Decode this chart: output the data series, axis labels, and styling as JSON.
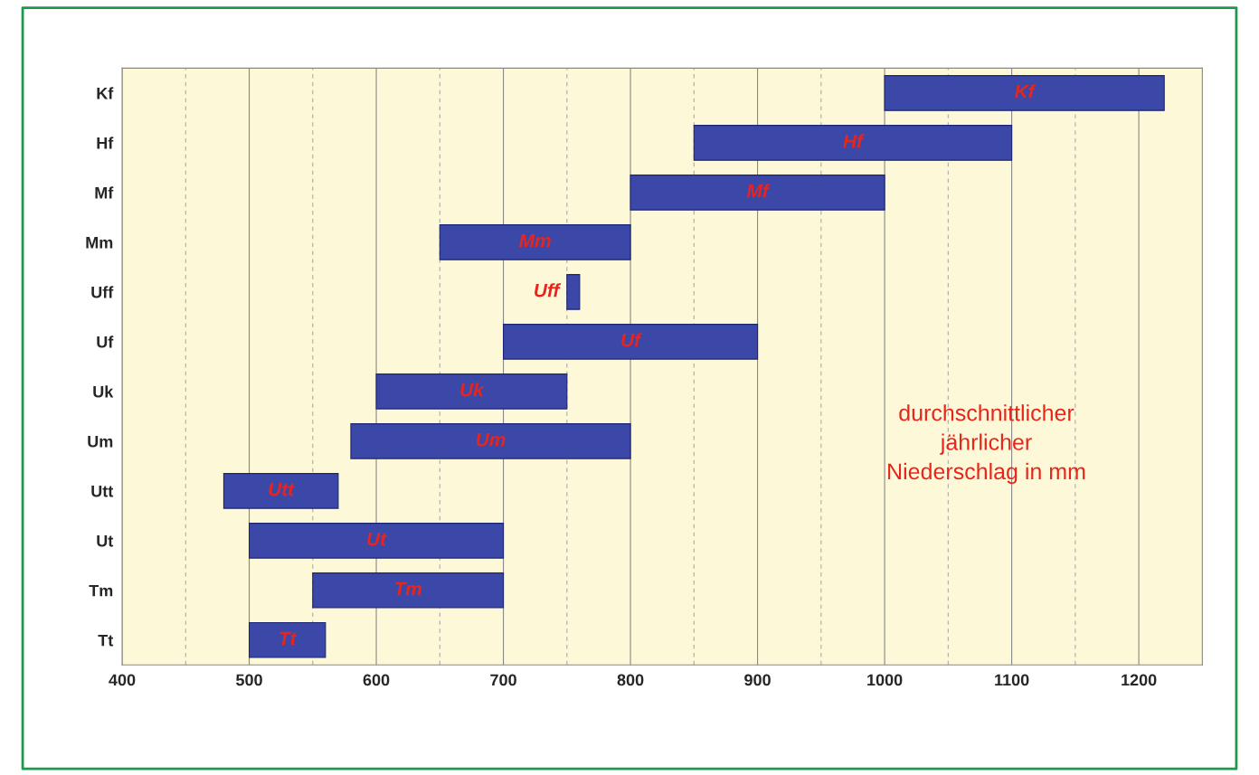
{
  "chart_data": {
    "type": "bar",
    "orientation": "horizontal",
    "categories": [
      "Kf",
      "Hf",
      "Mf",
      "Mm",
      "Uff",
      "Uf",
      "Uk",
      "Um",
      "Utt",
      "Ut",
      "Tm",
      "Tt"
    ],
    "base": [
      1000,
      850,
      800,
      650,
      750,
      700,
      600,
      580,
      480,
      500,
      550,
      500
    ],
    "values": [
      220,
      250,
      200,
      150,
      10,
      200,
      150,
      220,
      90,
      200,
      150,
      60
    ],
    "color": "#3b48a8",
    "value_labels": [
      "Kf",
      "Hf",
      "Mf",
      "Mm",
      "Uff",
      "Uf",
      "Uk",
      "Um",
      "Utt",
      "Ut",
      "Tm",
      "Tt"
    ],
    "xlim": [
      400,
      1250
    ],
    "xticks": [
      400,
      {
        "value": 450,
        "label": null
      },
      500,
      {
        "value": 550,
        "label": null
      },
      600,
      {
        "value": 650,
        "label": null
      },
      700,
      {
        "value": 750,
        "label": null
      },
      800,
      {
        "value": 850,
        "label": null
      },
      900,
      {
        "value": 950,
        "label": null
      },
      1000,
      {
        "value": 1050,
        "label": null
      },
      1100,
      {
        "value": 1150,
        "label": null
      },
      1200
    ],
    "grid": "x",
    "annotations": [
      "durchschnittlicher\njährlicher\nNiederschlag in mm"
    ]
  }
}
